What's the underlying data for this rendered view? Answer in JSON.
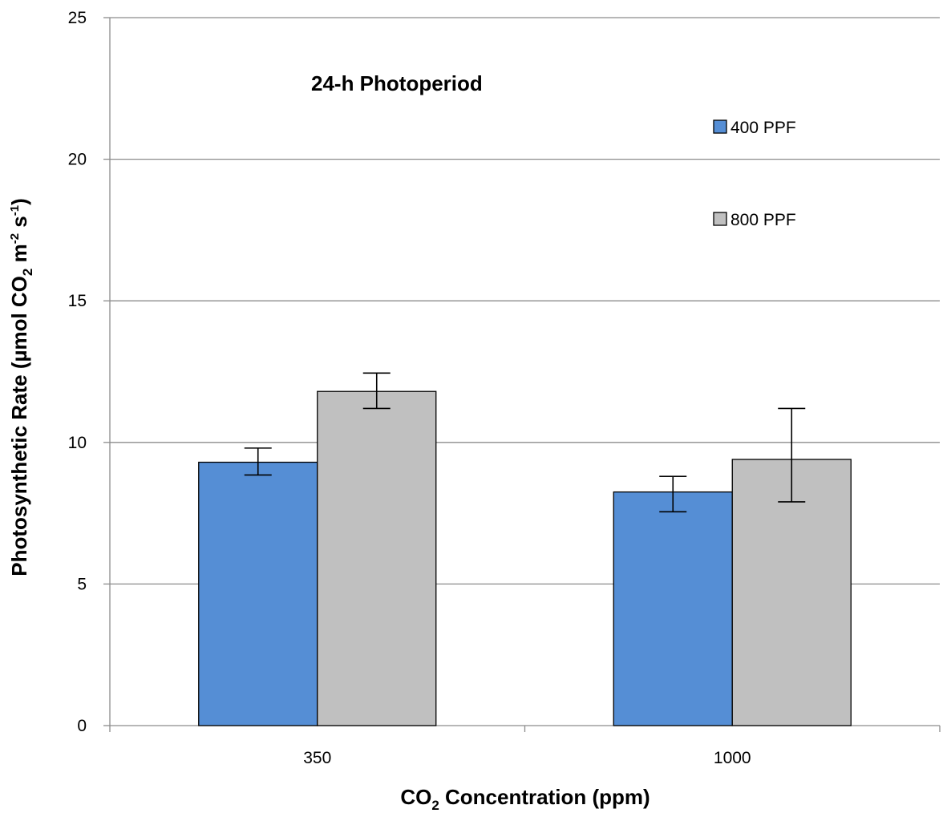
{
  "chart_data": {
    "type": "bar",
    "title": "24-h Photoperiod",
    "categories": [
      "350",
      "1000"
    ],
    "series": [
      {
        "name": "400 PPF",
        "color": "#558ed5",
        "values": [
          9.3,
          8.25
        ],
        "error_low": [
          8.85,
          7.55
        ],
        "error_high": [
          9.8,
          8.8
        ]
      },
      {
        "name": "800 PPF",
        "color": "#c0c0c0",
        "values": [
          11.8,
          9.4
        ],
        "error_low": [
          11.2,
          7.9
        ],
        "error_high": [
          12.45,
          11.2
        ]
      }
    ],
    "ylim": [
      0,
      25
    ],
    "yticks": [
      "0",
      "5",
      "10",
      "15",
      "20",
      "25"
    ],
    "ytick_values": [
      0,
      5,
      10,
      15,
      20,
      25
    ],
    "xlabel": {
      "prefix": "CO",
      "subscript": "2",
      "suffix": " Concentration (ppm)"
    },
    "ylabel": {
      "part1": "Photosynthetic Rate (µmol CO",
      "sub1": "2",
      "part2": " m",
      "sup1": "-2",
      "part3": " s",
      "sup2": "-1",
      "part4": ")"
    },
    "grid": true,
    "legend_position": "top-right"
  }
}
